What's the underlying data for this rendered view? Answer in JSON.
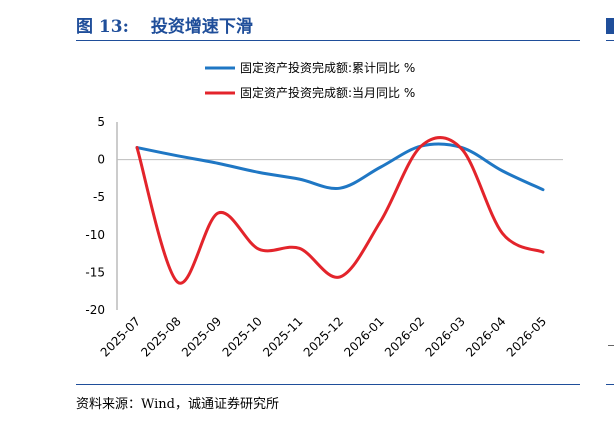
{
  "figure": {
    "number": "图 13:",
    "title": "投资增速下滑",
    "source": "资料来源：Wind，诚通证券研究所"
  },
  "chart_data": {
    "type": "line",
    "title": "",
    "xlabel": "",
    "ylabel": "",
    "categories": [
      "2025-07",
      "2025-08",
      "2025-09",
      "2025-10",
      "2025-11",
      "2025-12",
      "2026-01",
      "2026-02",
      "2026-03",
      "2026-04",
      "2026-05"
    ],
    "ylim": [
      -20,
      5
    ],
    "yticks": [
      5,
      0,
      -5,
      -10,
      -15,
      -20
    ],
    "grid": "horizontal zero line only",
    "legend_position": "top-left",
    "series": [
      {
        "name": "固定资产投资完成额:累计同比 %",
        "color": "#1f77c4",
        "values": [
          1.6,
          0.5,
          -0.5,
          -1.7,
          -2.6,
          -3.8,
          -1.0,
          1.8,
          1.6,
          -1.5,
          -4.0
        ]
      },
      {
        "name": "固定资产投资完成额:当月同比 %",
        "color": "#e3242b",
        "values": [
          1.6,
          -16.3,
          -7.1,
          -11.9,
          -11.8,
          -15.6,
          -8.2,
          1.8,
          1.4,
          -9.8,
          -12.3
        ]
      }
    ]
  }
}
